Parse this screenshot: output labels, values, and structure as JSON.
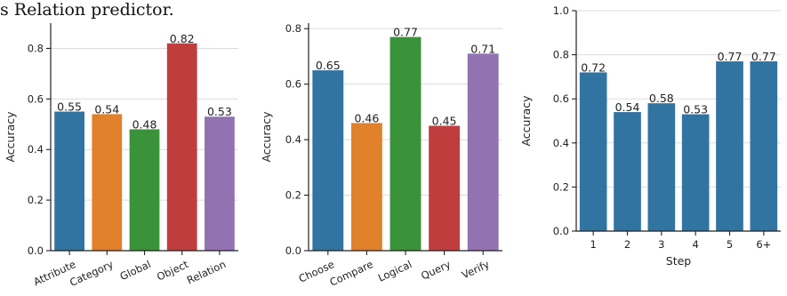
{
  "caption": "s Relation predictor.",
  "chart_data": [
    {
      "type": "bar",
      "categories": [
        "Attribute",
        "Category",
        "Global",
        "Object",
        "Relation"
      ],
      "values": [
        0.55,
        0.54,
        0.48,
        0.82,
        0.53
      ],
      "value_labels": [
        "0.55",
        "0.54",
        "0.48",
        "0.82",
        "0.53"
      ],
      "colors": [
        "#3274a1",
        "#e1812c",
        "#3a923a",
        "#c03d3e",
        "#9372b2"
      ],
      "ylabel": "Accuracy",
      "xlabel": "",
      "ylim": [
        0,
        0.9
      ],
      "yticks": [
        "0.0",
        "0.2",
        "0.4",
        "0.6",
        "0.8"
      ],
      "ytick_values": [
        0,
        0.2,
        0.4,
        0.6,
        0.8
      ],
      "rotated_xticks": true,
      "grid": true
    },
    {
      "type": "bar",
      "categories": [
        "Choose",
        "Compare",
        "Logical",
        "Query",
        "Verify"
      ],
      "values": [
        0.65,
        0.46,
        0.77,
        0.45,
        0.71
      ],
      "value_labels": [
        "0.65",
        "0.46",
        "0.77",
        "0.45",
        "0.71"
      ],
      "colors": [
        "#3274a1",
        "#e1812c",
        "#3a923a",
        "#c03d3e",
        "#9372b2"
      ],
      "ylabel": "Accuracy",
      "xlabel": "",
      "ylim": [
        0,
        0.82
      ],
      "yticks": [
        "0.0",
        "0.2",
        "0.4",
        "0.6",
        "0.8"
      ],
      "ytick_values": [
        0,
        0.2,
        0.4,
        0.6,
        0.8
      ],
      "rotated_xticks": true,
      "grid": true
    },
    {
      "type": "bar",
      "categories": [
        "1",
        "2",
        "3",
        "4",
        "5",
        "6+"
      ],
      "values": [
        0.72,
        0.54,
        0.58,
        0.53,
        0.77,
        0.77
      ],
      "value_labels": [
        "0.72",
        "0.54",
        "0.58",
        "0.53",
        "0.77",
        "0.77"
      ],
      "colors": [
        "#3274a1",
        "#3274a1",
        "#3274a1",
        "#3274a1",
        "#3274a1",
        "#3274a1"
      ],
      "ylabel": "Accuracy",
      "xlabel": "Step",
      "ylim": [
        0,
        1.0
      ],
      "yticks": [
        "0.0",
        "0.2",
        "0.4",
        "0.6",
        "0.8",
        "1.0"
      ],
      "ytick_values": [
        0,
        0.2,
        0.4,
        0.6,
        0.8,
        1.0
      ],
      "rotated_xticks": false,
      "grid": true
    }
  ]
}
